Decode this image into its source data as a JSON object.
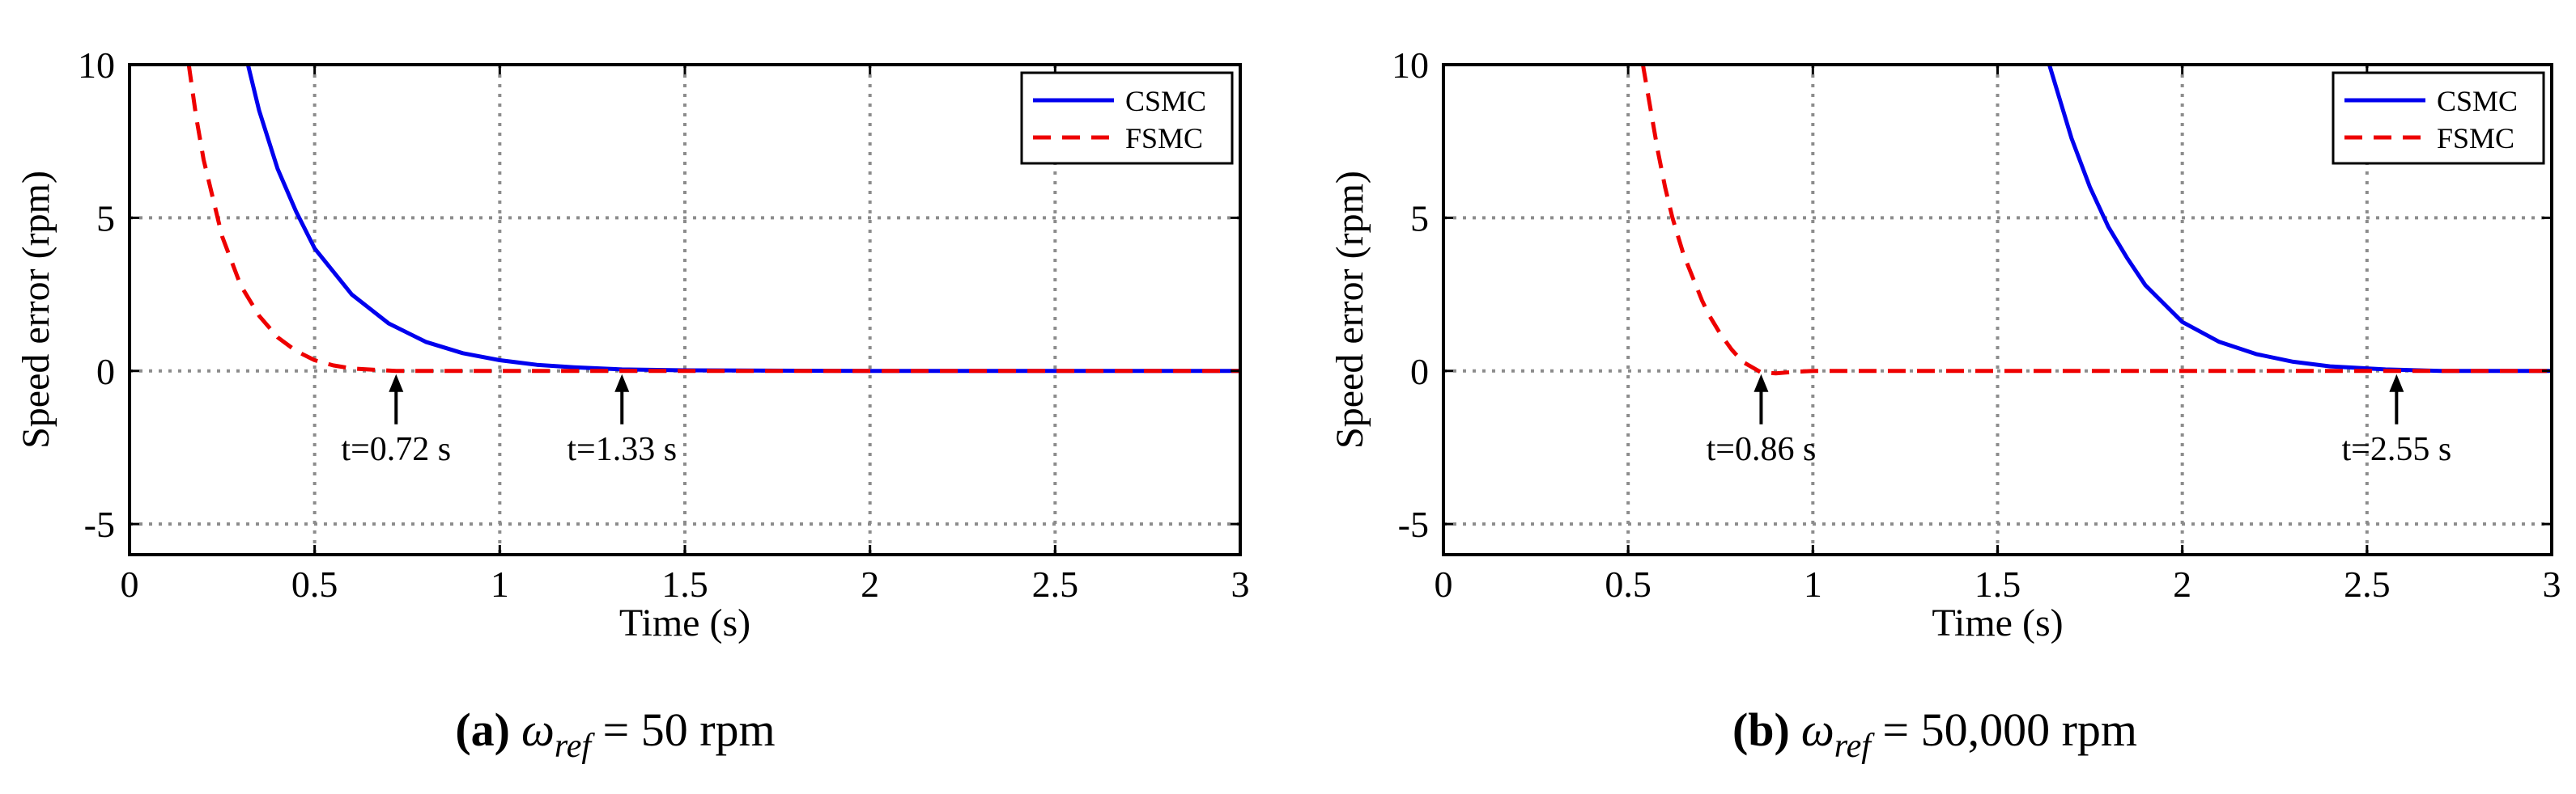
{
  "chart_data": [
    {
      "type": "line",
      "caption": {
        "label": "(a)",
        "symbol": "ω",
        "subscript": "ref",
        "rest": " = 50 rpm"
      },
      "xlabel": "Time (s)",
      "ylabel": "Speed error  (rpm)",
      "xlim": [
        0,
        3
      ],
      "ylim": [
        -6,
        10
      ],
      "xticks": [
        0,
        0.5,
        1,
        1.5,
        2,
        2.5,
        3
      ],
      "xtick_labels": [
        "0",
        "0.5",
        "1",
        "1.5",
        "2",
        "2.5",
        "3"
      ],
      "yticks": [
        10,
        5,
        0,
        -5
      ],
      "ytick_labels": [
        "10",
        "5",
        "0",
        "-5"
      ],
      "grid": true,
      "legend": "top-right",
      "series": [
        {
          "name": "CSMC",
          "color": "#0000ee",
          "style": "solid",
          "x": [
            0.32,
            0.35,
            0.4,
            0.45,
            0.5,
            0.6,
            0.7,
            0.8,
            0.9,
            1.0,
            1.1,
            1.2,
            1.33,
            1.5,
            2.0,
            2.5,
            3.0
          ],
          "y": [
            10.0,
            8.5,
            6.6,
            5.2,
            4.0,
            2.5,
            1.55,
            0.95,
            0.58,
            0.35,
            0.2,
            0.12,
            0.05,
            0.02,
            0.0,
            0.0,
            0.0
          ]
        },
        {
          "name": "FSMC",
          "color": "#ee0000",
          "style": "dashed",
          "x": [
            0.16,
            0.18,
            0.2,
            0.25,
            0.3,
            0.35,
            0.4,
            0.45,
            0.5,
            0.55,
            0.6,
            0.72,
            1.0,
            1.5,
            2.0,
            2.5,
            3.0
          ],
          "y": [
            10.0,
            8.3,
            6.9,
            4.4,
            2.8,
            1.8,
            1.1,
            0.65,
            0.35,
            0.18,
            0.08,
            0.0,
            0.0,
            0.0,
            0.0,
            0.0,
            0.0
          ]
        }
      ],
      "annotations": [
        {
          "text": "t=0.72 s",
          "x": 0.72,
          "y": 0
        },
        {
          "text": "t=1.33 s",
          "x": 1.33,
          "y": 0
        }
      ]
    },
    {
      "type": "line",
      "caption": {
        "label": "(b)",
        "symbol": "ω",
        "subscript": "ref",
        "rest": " = 50,000 rpm"
      },
      "xlabel": "Time (s)",
      "ylabel": "Speed error  (rpm)",
      "xlim": [
        0,
        3
      ],
      "ylim": [
        -6,
        10
      ],
      "xticks": [
        0,
        0.5,
        1,
        1.5,
        2,
        2.5,
        3
      ],
      "xtick_labels": [
        "0",
        "0.5",
        "1",
        "1.5",
        "2",
        "2.5",
        "3"
      ],
      "yticks": [
        10,
        5,
        0,
        -5
      ],
      "ytick_labels": [
        "10",
        "5",
        "0",
        "-5"
      ],
      "grid": true,
      "legend": "top-right",
      "series": [
        {
          "name": "CSMC",
          "color": "#0000ee",
          "style": "solid",
          "x": [
            1.64,
            1.7,
            1.75,
            1.8,
            1.85,
            1.9,
            2.0,
            2.1,
            2.2,
            2.3,
            2.4,
            2.55,
            2.7,
            3.0
          ],
          "y": [
            10.0,
            7.6,
            6.0,
            4.7,
            3.7,
            2.8,
            1.6,
            0.95,
            0.55,
            0.3,
            0.15,
            0.05,
            0.0,
            0.0
          ]
        },
        {
          "name": "FSMC",
          "color": "#ee0000",
          "style": "dashed",
          "x": [
            0.54,
            0.56,
            0.58,
            0.6,
            0.62,
            0.65,
            0.68,
            0.7,
            0.72,
            0.75,
            0.78,
            0.81,
            0.86,
            0.9,
            0.95,
            1.0,
            1.5,
            2.0,
            2.5,
            3.0
          ],
          "y": [
            10.0,
            8.6,
            7.2,
            6.0,
            5.0,
            3.8,
            2.9,
            2.3,
            1.8,
            1.2,
            0.7,
            0.3,
            -0.05,
            -0.08,
            -0.03,
            0.0,
            0.0,
            0.0,
            0.0,
            0.0
          ]
        }
      ],
      "annotations": [
        {
          "text": "t=0.86 s",
          "x": 0.86,
          "y": 0
        },
        {
          "text": "t=2.55 s",
          "x": 2.58,
          "y": 0
        }
      ]
    }
  ]
}
